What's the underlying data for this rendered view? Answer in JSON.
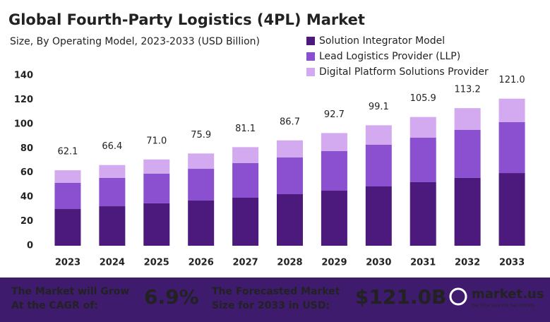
{
  "chart_data": {
    "type": "stacked_bar",
    "title": "Global Fourth-Party Logistics (4PL) Market",
    "subtitle": "Size, By Operating Model, 2023-2033 (USD Billion)",
    "categories": [
      "2023",
      "2024",
      "2025",
      "2026",
      "2027",
      "2028",
      "2029",
      "2030",
      "2031",
      "2032",
      "2033"
    ],
    "series": [
      {
        "name": "Solution Integrator Model",
        "color": "#4b1a7c",
        "values": [
          30.2,
          32.5,
          34.9,
          37.2,
          39.5,
          42.4,
          45.3,
          48.8,
          52.3,
          55.8,
          59.8
        ]
      },
      {
        "name": "Lead Logistics Provider (LLP)",
        "color": "#8b50cf",
        "values": [
          21.5,
          23.3,
          24.4,
          26.1,
          28.5,
          30.2,
          32.6,
          34.3,
          36.6,
          39.5,
          41.9
        ]
      },
      {
        "name": "Digital Platform Solutions Provider",
        "color": "#d3a9ef",
        "values": [
          10.4,
          10.6,
          11.7,
          12.6,
          13.1,
          14.1,
          14.8,
          16.0,
          17.0,
          17.9,
          19.3
        ]
      }
    ],
    "totals": {
      "values": [
        62.1,
        66.4,
        71.0,
        75.9,
        81.1,
        86.7,
        92.7,
        99.1,
        105.9,
        113.2,
        121.0
      ],
      "value_labels": [
        "62.1",
        "66.4",
        "71.0",
        "75.9",
        "81.1",
        "86.7",
        "92.7",
        "99.1",
        "105.9",
        "113.2",
        "121.0"
      ]
    },
    "ylim": [
      0,
      140
    ],
    "yticks": [
      0,
      20,
      40,
      60,
      80,
      100,
      120,
      140
    ],
    "grid": false
  },
  "footer": {
    "cagr_text_1": "The Market will Grow",
    "cagr_text_2": "At the CAGR of:",
    "cagr": "6.9%",
    "forecast_text_1": "The Forecasted Market",
    "forecast_text_2": "Size for 2033 in USD:",
    "forecast": "$121.0B",
    "brand": "market.us",
    "tagline": "ONE STOP SHOP FOR THE REPORTS"
  }
}
